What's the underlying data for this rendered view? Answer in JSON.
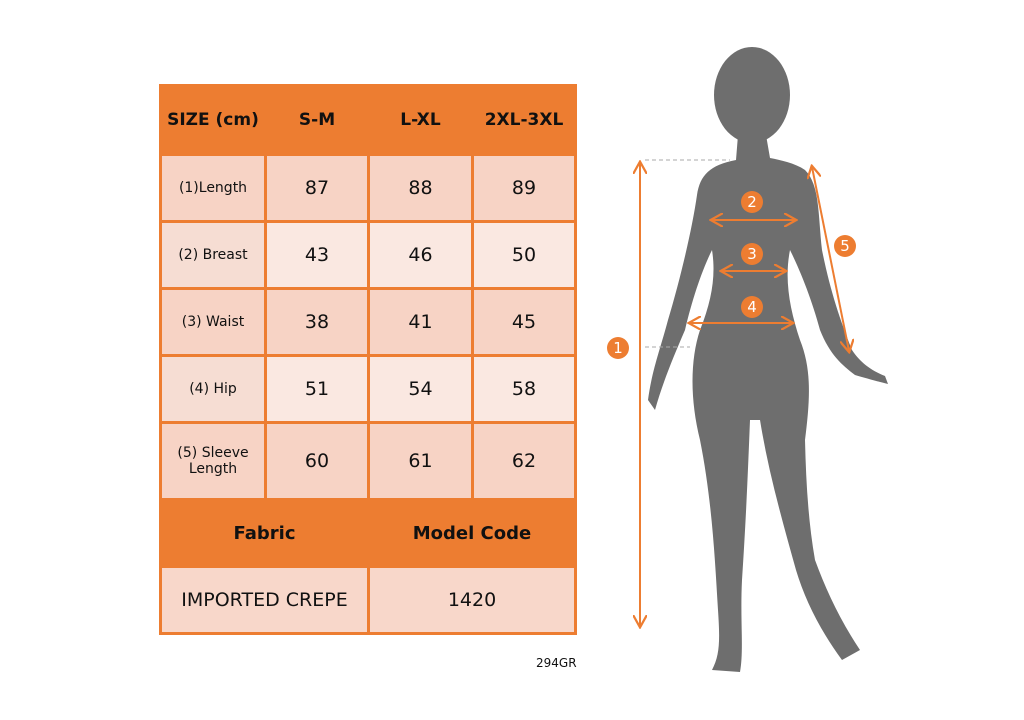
{
  "table": {
    "header": [
      "SIZE (cm)",
      "S-M",
      "L-XL",
      "2XL-3XL"
    ],
    "rows": [
      {
        "label": "(1)Length",
        "values": [
          "87",
          "88",
          "89"
        ]
      },
      {
        "label": "(2) Breast",
        "values": [
          "43",
          "46",
          "50"
        ]
      },
      {
        "label": "(3) Waist",
        "values": [
          "38",
          "41",
          "45"
        ]
      },
      {
        "label": "(4) Hip",
        "values": [
          "51",
          "54",
          "58"
        ]
      },
      {
        "label": "(5) Sleeve Length",
        "values": [
          "60",
          "61",
          "62"
        ]
      }
    ],
    "fabric_label": "Fabric",
    "model_code_label": "Model Code",
    "fabric_value": "IMPORTED CREPE",
    "model_code_value": "1420"
  },
  "product_code": "294GR",
  "figure": {
    "markers": [
      "1",
      "2",
      "3",
      "4",
      "5"
    ]
  },
  "colors": {
    "accent": "#ED7D31",
    "silhouette": "#6E6E6E",
    "cell_dark": "#F7D3C5",
    "cell_light": "#FAE8E1"
  }
}
